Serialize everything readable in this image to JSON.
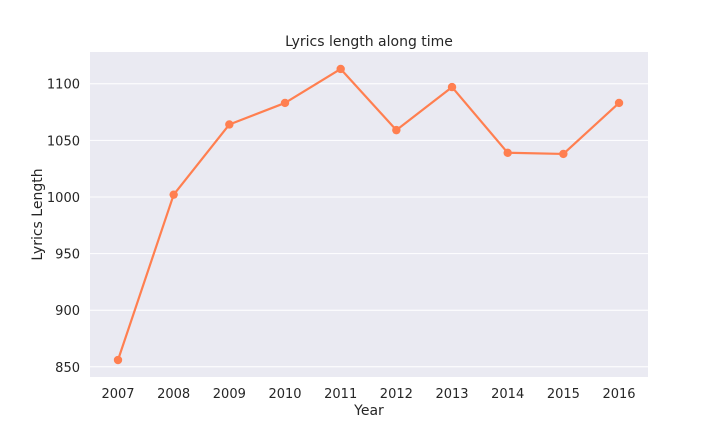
{
  "chart_data": {
    "type": "line",
    "title": "Lyrics length along time",
    "xlabel": "Year",
    "ylabel": "Lyrics Length",
    "categories": [
      "2007",
      "2008",
      "2009",
      "2010",
      "2011",
      "2012",
      "2013",
      "2014",
      "2015",
      "2016"
    ],
    "series": [
      {
        "values": [
          856,
          1002,
          1064,
          1083,
          1113,
          1059,
          1097,
          1039,
          1038,
          1083
        ]
      }
    ],
    "ylim": [
      841,
      1128
    ],
    "yticks": [
      850,
      900,
      950,
      1000,
      1050,
      1100
    ],
    "grid": true,
    "legend": "none",
    "colors": {
      "line": "#ff7f50",
      "plot_bg": "#eaeaf2",
      "grid": "#ffffff",
      "text": "#262626"
    }
  }
}
